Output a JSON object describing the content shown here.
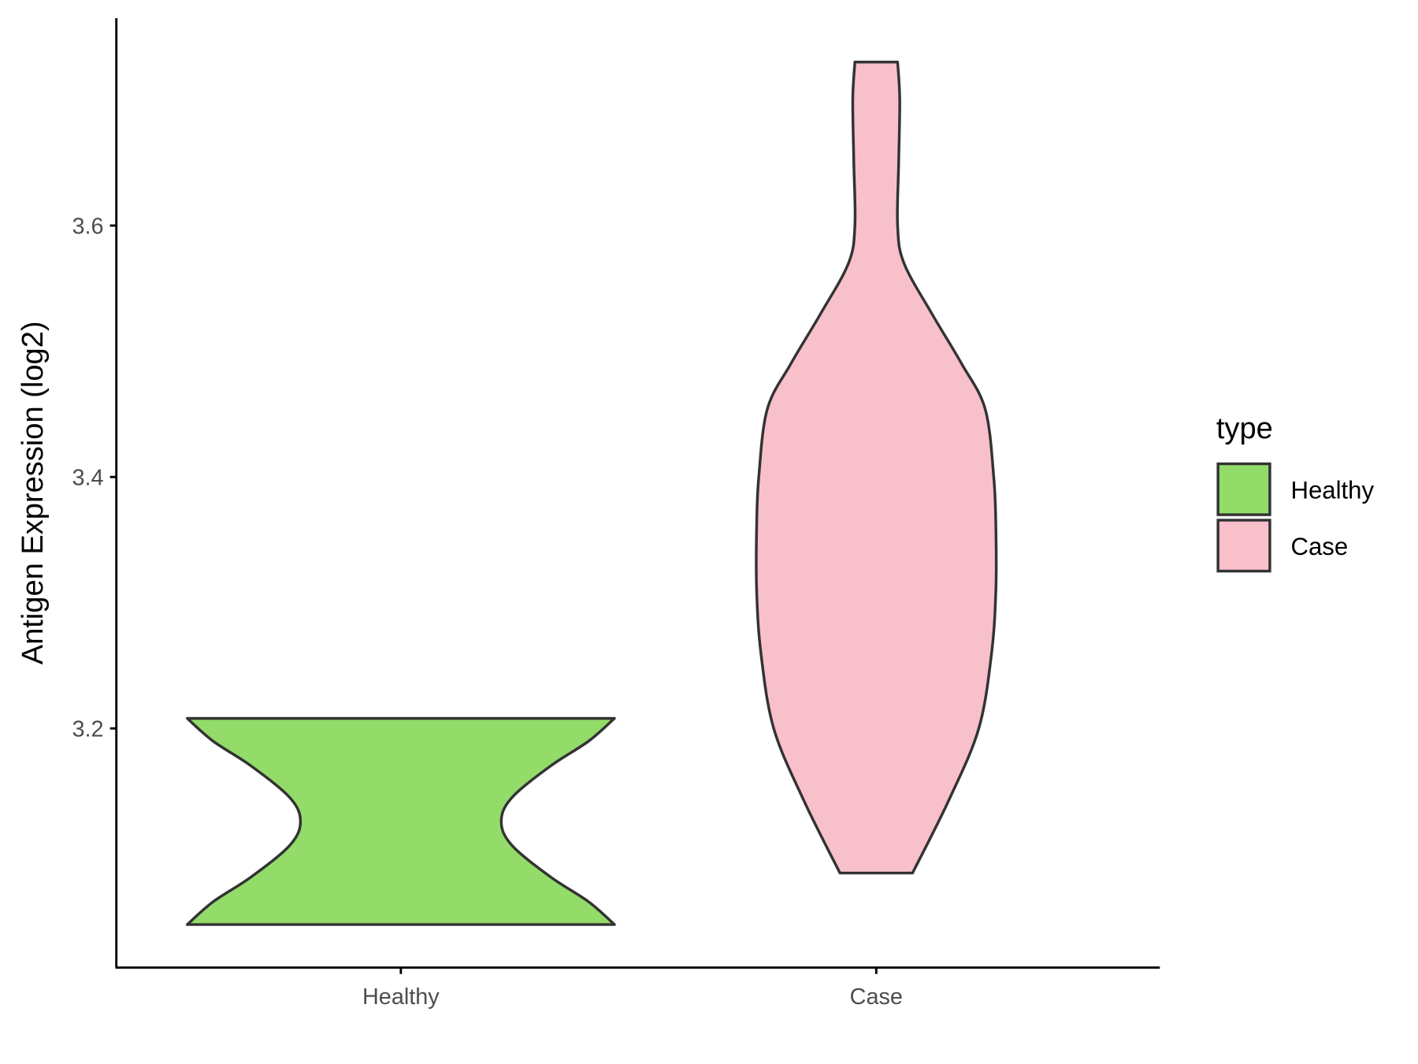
{
  "chart_data": {
    "type": "violin",
    "title": "",
    "xlabel": "",
    "ylabel": "Antigen Expression (log2)",
    "categories": [
      "Healthy",
      "Case"
    ],
    "yticks": [
      "3.2",
      "3.4",
      "3.6"
    ],
    "ylim": [
      3.02,
      3.77
    ],
    "grid": false,
    "legend": {
      "title": "type",
      "placement": "right",
      "entries": [
        "Healthy",
        "Case"
      ]
    },
    "series": [
      {
        "name": "Healthy",
        "color": "#93dc6a",
        "min": 3.044,
        "max": 3.208,
        "profile": [
          [
            3.208,
            1.0
          ],
          [
            3.19,
            0.88
          ],
          [
            3.17,
            0.7
          ],
          [
            3.145,
            0.52
          ],
          [
            3.126,
            0.47
          ],
          [
            3.107,
            0.52
          ],
          [
            3.082,
            0.7
          ],
          [
            3.062,
            0.88
          ],
          [
            3.044,
            1.0
          ]
        ]
      },
      {
        "name": "Case",
        "color": "#f8c0cb",
        "min": 3.085,
        "max": 3.73,
        "profile": [
          [
            3.73,
            0.1
          ],
          [
            3.7,
            0.11
          ],
          [
            3.65,
            0.105
          ],
          [
            3.6,
            0.1
          ],
          [
            3.57,
            0.13
          ],
          [
            3.53,
            0.26
          ],
          [
            3.49,
            0.4
          ],
          [
            3.454,
            0.51
          ],
          [
            3.4,
            0.55
          ],
          [
            3.36,
            0.56
          ],
          [
            3.31,
            0.56
          ],
          [
            3.26,
            0.54
          ],
          [
            3.2,
            0.48
          ],
          [
            3.143,
            0.34
          ],
          [
            3.085,
            0.17
          ]
        ]
      }
    ],
    "outline_color": "#333333"
  }
}
